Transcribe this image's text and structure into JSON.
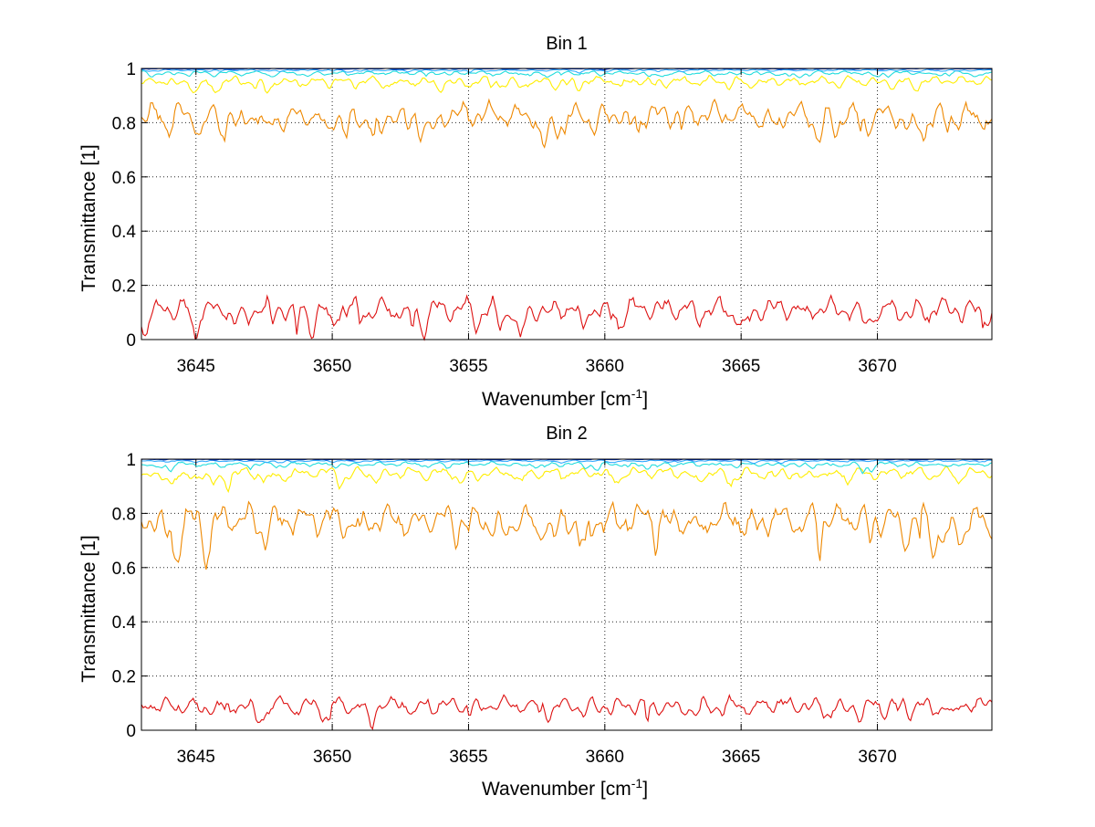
{
  "chart_data": [
    {
      "type": "line",
      "title": "Bin 1",
      "xlabel": "Wavenumber [cm",
      "xlabel_sup": "-1",
      "xlabel_end": "]",
      "ylabel": "Transmittance [1]",
      "xlim": [
        3643,
        3674.2
      ],
      "ylim": [
        0,
        1
      ],
      "xticks": [
        3645,
        3650,
        3655,
        3660,
        3665,
        3670
      ],
      "yticks": [
        0,
        0.2,
        0.4,
        0.6,
        0.8,
        1
      ],
      "ytick_labels": [
        "0",
        "0.2",
        "0.4",
        "0.6",
        "0.8",
        "1"
      ],
      "grid": true,
      "series": [
        {
          "name": "dark red",
          "color": "#800000",
          "mean": 0.0,
          "amp": 0.0,
          "seed": 11
        },
        {
          "name": "red",
          "color": "#dd1111",
          "mean": 0.115,
          "amp": 0.042,
          "seed": 12
        },
        {
          "name": "orange",
          "color": "#ee8800",
          "mean": 0.83,
          "amp": 0.045,
          "seed": 13
        },
        {
          "name": "yellow",
          "color": "#ffee00",
          "mean": 0.955,
          "amp": 0.017,
          "seed": 14
        },
        {
          "name": "cyan",
          "color": "#22dddd",
          "mean": 0.984,
          "amp": 0.007,
          "seed": 15
        },
        {
          "name": "light blue",
          "color": "#33aaff",
          "mean": 0.994,
          "amp": 0.003,
          "seed": 16
        },
        {
          "name": "blue",
          "color": "#0033cc",
          "mean": 0.999,
          "amp": 0.001,
          "seed": 17
        }
      ]
    },
    {
      "type": "line",
      "title": "Bin 2",
      "xlabel": "Wavenumber [cm",
      "xlabel_sup": "-1",
      "xlabel_end": "]",
      "ylabel": "Transmittance [1]",
      "xlim": [
        3643,
        3674.2
      ],
      "ylim": [
        0,
        1
      ],
      "xticks": [
        3645,
        3650,
        3655,
        3660,
        3665,
        3670
      ],
      "yticks": [
        0,
        0.2,
        0.4,
        0.6,
        0.8,
        1
      ],
      "ytick_labels": [
        "0",
        "0.2",
        "0.4",
        "0.6",
        "0.8",
        "1"
      ],
      "grid": true,
      "series": [
        {
          "name": "dark red",
          "color": "#800000",
          "mean": 0.0,
          "amp": 0.0,
          "seed": 21
        },
        {
          "name": "red",
          "color": "#dd1111",
          "mean": 0.095,
          "amp": 0.03,
          "seed": 22
        },
        {
          "name": "orange",
          "color": "#ee8800",
          "mean": 0.78,
          "amp": 0.055,
          "seed": 23
        },
        {
          "name": "yellow",
          "color": "#ffee00",
          "mean": 0.95,
          "amp": 0.02,
          "seed": 24
        },
        {
          "name": "cyan",
          "color": "#22dddd",
          "mean": 0.982,
          "amp": 0.008,
          "seed": 25
        },
        {
          "name": "light blue",
          "color": "#33aaff",
          "mean": 0.994,
          "amp": 0.003,
          "seed": 26
        },
        {
          "name": "blue",
          "color": "#0033cc",
          "mean": 0.999,
          "amp": 0.001,
          "seed": 27
        }
      ]
    }
  ]
}
